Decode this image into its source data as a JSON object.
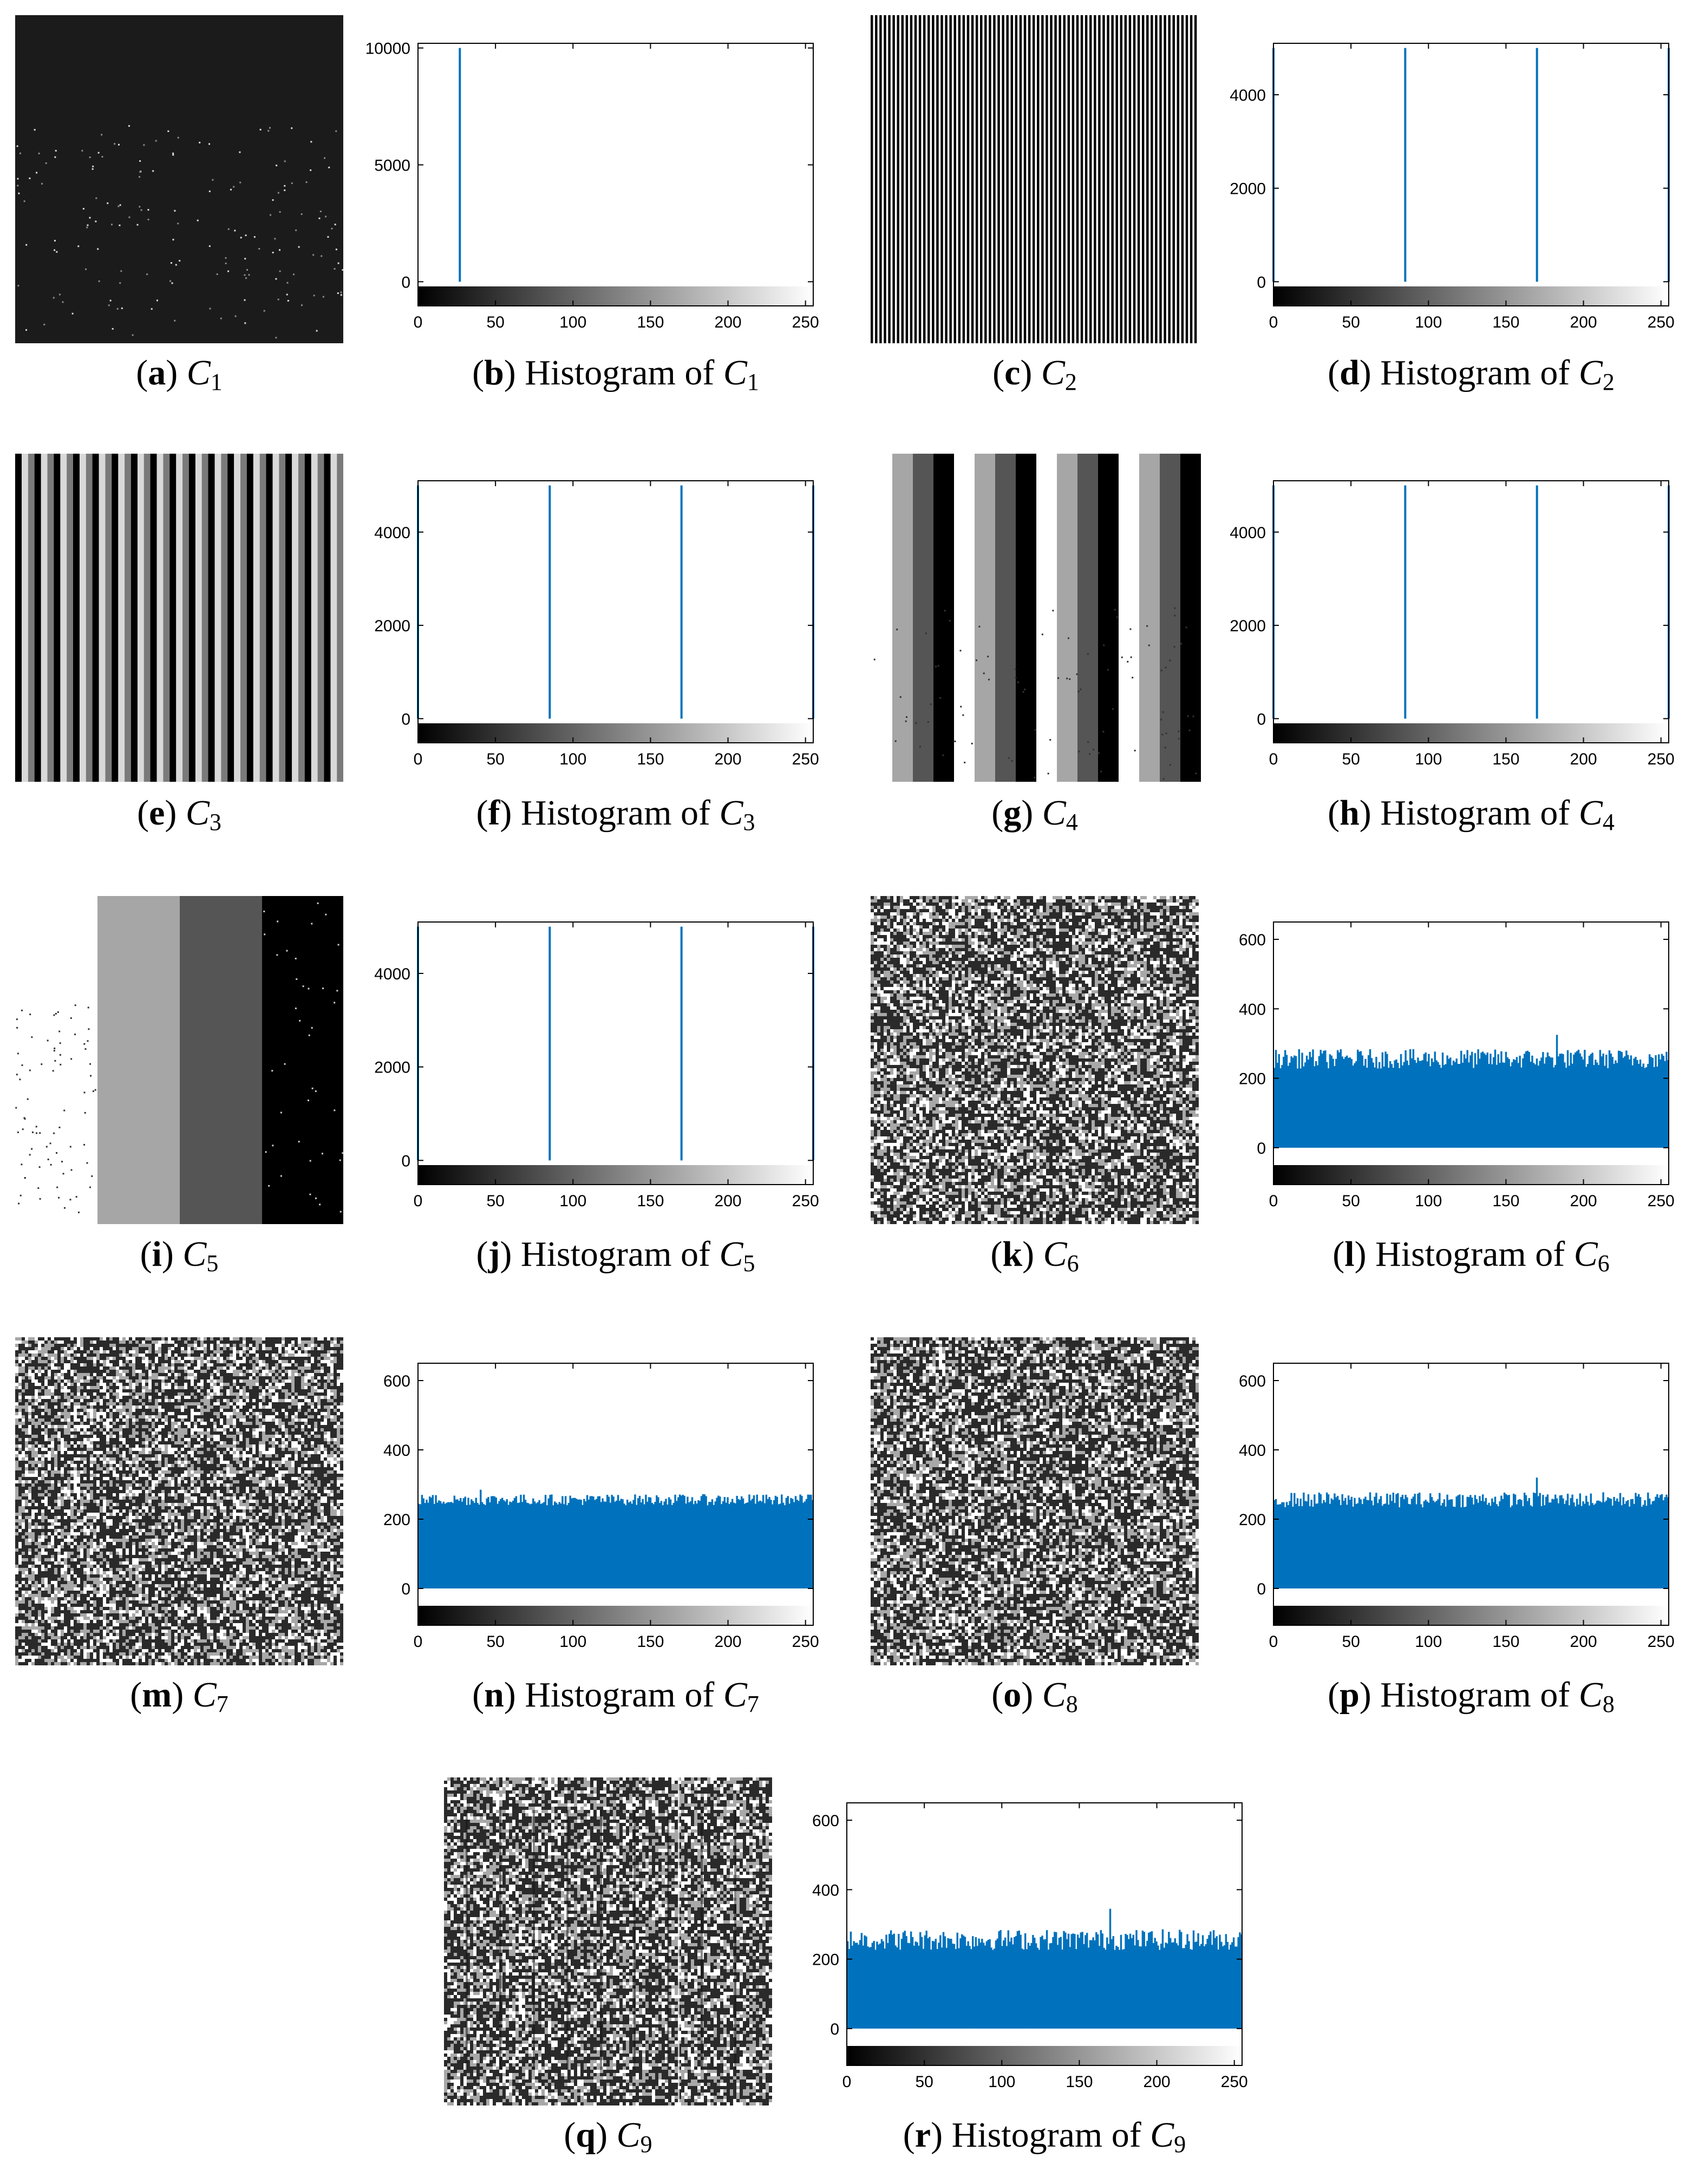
{
  "figure": {
    "caption_word": "Histogram of",
    "panels": [
      {
        "letter": "a",
        "image": "C",
        "sub": "1"
      },
      {
        "letter": "b",
        "hist": "C",
        "sub": "1"
      },
      {
        "letter": "c",
        "image": "C",
        "sub": "2"
      },
      {
        "letter": "d",
        "hist": "C",
        "sub": "2"
      },
      {
        "letter": "e",
        "image": "C",
        "sub": "3"
      },
      {
        "letter": "f",
        "hist": "C",
        "sub": "3"
      },
      {
        "letter": "g",
        "image": "C",
        "sub": "4"
      },
      {
        "letter": "h",
        "hist": "C",
        "sub": "4"
      },
      {
        "letter": "i",
        "image": "C",
        "sub": "5"
      },
      {
        "letter": "j",
        "hist": "C",
        "sub": "5"
      },
      {
        "letter": "k",
        "image": "C",
        "sub": "6"
      },
      {
        "letter": "l",
        "hist": "C",
        "sub": "6"
      },
      {
        "letter": "m",
        "image": "C",
        "sub": "7"
      },
      {
        "letter": "n",
        "hist": "C",
        "sub": "7"
      },
      {
        "letter": "o",
        "image": "C",
        "sub": "8"
      },
      {
        "letter": "p",
        "hist": "C",
        "sub": "8"
      },
      {
        "letter": "q",
        "image": "C",
        "sub": "9"
      },
      {
        "letter": "r",
        "hist": "C",
        "sub": "9"
      }
    ]
  },
  "colors": {
    "bar": "#0072BD",
    "axis": "#000000"
  },
  "chart_data": [
    {
      "type": "bar",
      "panel": "b",
      "image": "C1",
      "xlim": [
        0,
        255
      ],
      "ylim": [
        -200,
        10200
      ],
      "yticks": [
        0,
        5000,
        10000
      ],
      "xticks": [
        0,
        50,
        100,
        150,
        200,
        250
      ],
      "spikes": [
        {
          "x": 27,
          "y": 10000
        }
      ],
      "uniform_mean": null
    },
    {
      "type": "bar",
      "panel": "d",
      "image": "C2",
      "xlim": [
        0,
        255
      ],
      "ylim": [
        -100,
        5100
      ],
      "yticks": [
        0,
        2000,
        4000
      ],
      "xticks": [
        0,
        50,
        100,
        150,
        200,
        250
      ],
      "spikes": [
        {
          "x": 0,
          "y": 5000
        },
        {
          "x": 85,
          "y": 5000
        },
        {
          "x": 170,
          "y": 5000
        },
        {
          "x": 255,
          "y": 5000
        }
      ],
      "uniform_mean": null
    },
    {
      "type": "bar",
      "panel": "f",
      "image": "C3",
      "xlim": [
        0,
        255
      ],
      "ylim": [
        -100,
        5100
      ],
      "yticks": [
        0,
        2000,
        4000
      ],
      "xticks": [
        0,
        50,
        100,
        150,
        200,
        250
      ],
      "spikes": [
        {
          "x": 0,
          "y": 5000
        },
        {
          "x": 85,
          "y": 5000
        },
        {
          "x": 170,
          "y": 5000
        },
        {
          "x": 255,
          "y": 5000
        }
      ],
      "uniform_mean": null
    },
    {
      "type": "bar",
      "panel": "h",
      "image": "C4",
      "xlim": [
        0,
        255
      ],
      "ylim": [
        -100,
        5100
      ],
      "yticks": [
        0,
        2000,
        4000
      ],
      "xticks": [
        0,
        50,
        100,
        150,
        200,
        250
      ],
      "spikes": [
        {
          "x": 0,
          "y": 5000
        },
        {
          "x": 85,
          "y": 5000
        },
        {
          "x": 170,
          "y": 5000
        },
        {
          "x": 255,
          "y": 5000
        }
      ],
      "uniform_mean": null
    },
    {
      "type": "bar",
      "panel": "j",
      "image": "C5",
      "xlim": [
        0,
        255
      ],
      "ylim": [
        -100,
        5100
      ],
      "yticks": [
        0,
        2000,
        4000
      ],
      "xticks": [
        0,
        50,
        100,
        150,
        200,
        250
      ],
      "spikes": [
        {
          "x": 0,
          "y": 5000
        },
        {
          "x": 85,
          "y": 5000
        },
        {
          "x": 170,
          "y": 5000
        },
        {
          "x": 255,
          "y": 5000
        }
      ],
      "uniform_mean": null
    },
    {
      "type": "bar",
      "panel": "l",
      "image": "C6",
      "xlim": [
        0,
        255
      ],
      "ylim": [
        -50,
        650
      ],
      "yticks": [
        0,
        200,
        400,
        600
      ],
      "xticks": [
        0,
        50,
        100,
        150,
        200,
        250
      ],
      "spikes": [],
      "uniform_mean": 256,
      "uniform_spread": 28,
      "peak": {
        "x": 183,
        "y": 325
      }
    },
    {
      "type": "bar",
      "panel": "n",
      "image": "C7",
      "xlim": [
        0,
        255
      ],
      "ylim": [
        -50,
        650
      ],
      "yticks": [
        0,
        200,
        400,
        600
      ],
      "xticks": [
        0,
        50,
        100,
        150,
        200,
        250
      ],
      "spikes": [],
      "uniform_mean": 256,
      "uniform_spread": 16,
      "peak": {
        "x": 40,
        "y": 285
      }
    },
    {
      "type": "bar",
      "panel": "p",
      "image": "C8",
      "xlim": [
        0,
        255
      ],
      "ylim": [
        -50,
        650
      ],
      "yticks": [
        0,
        200,
        400,
        600
      ],
      "xticks": [
        0,
        50,
        100,
        150,
        200,
        250
      ],
      "spikes": [],
      "uniform_mean": 256,
      "uniform_spread": 22,
      "peak": {
        "x": 170,
        "y": 320
      }
    },
    {
      "type": "bar",
      "panel": "r",
      "image": "C9",
      "xlim": [
        0,
        255
      ],
      "ylim": [
        -50,
        650
      ],
      "yticks": [
        0,
        200,
        400,
        600
      ],
      "xticks": [
        0,
        50,
        100,
        150,
        200,
        250
      ],
      "spikes": [],
      "uniform_mean": 256,
      "uniform_spread": 30,
      "peak": {
        "x": 170,
        "y": 345
      }
    }
  ]
}
